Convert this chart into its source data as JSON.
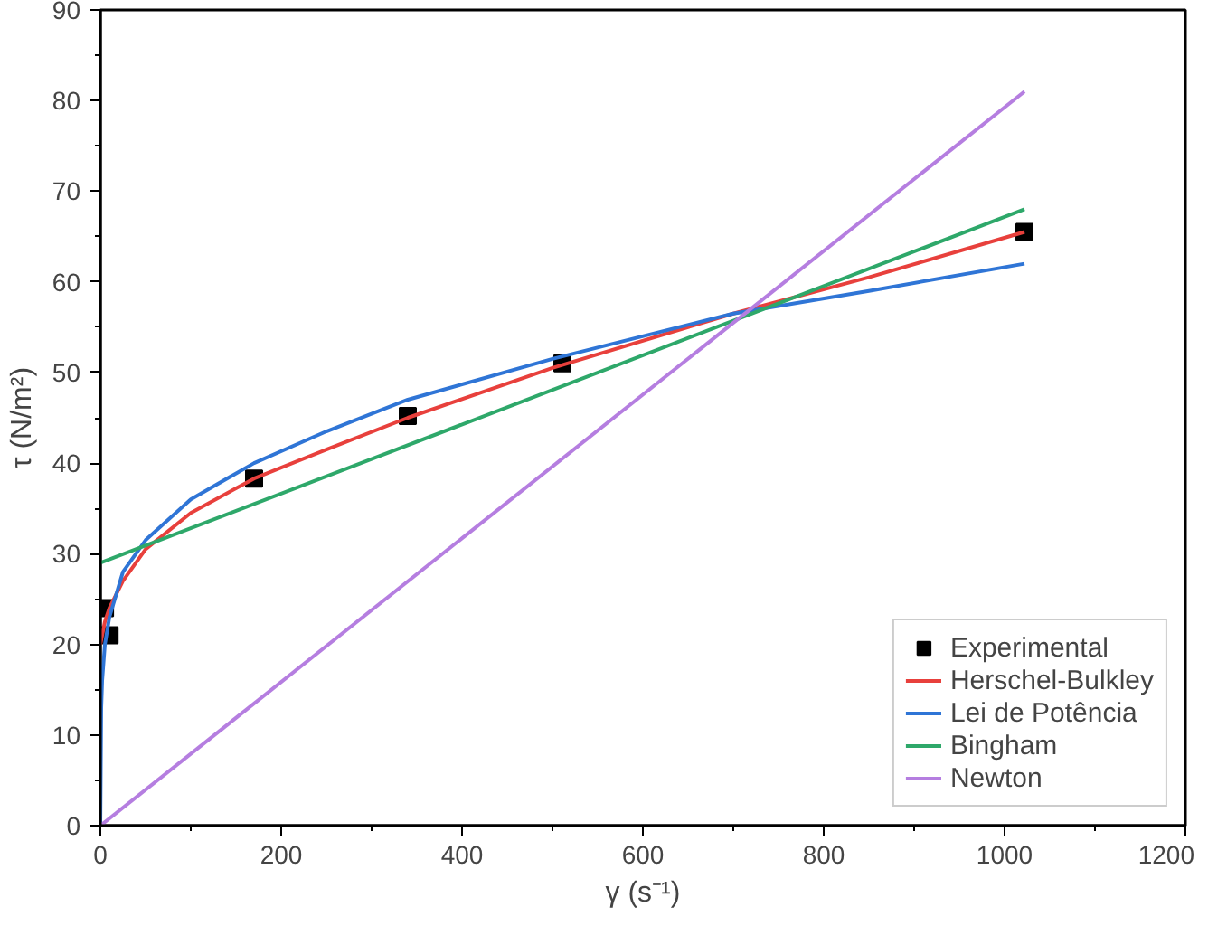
{
  "chart_data": {
    "type": "line",
    "xlabel": "γ (s⁻¹)",
    "ylabel": "τ (N/m²)",
    "xlim": [
      0,
      1200
    ],
    "ylim": [
      0,
      90
    ],
    "xticks": [
      0,
      200,
      400,
      600,
      800,
      1000,
      1200
    ],
    "yticks": [
      0,
      10,
      20,
      30,
      40,
      50,
      60,
      70,
      80,
      90
    ],
    "grid": false,
    "legend": "bottom right",
    "series": [
      {
        "name": "Experimental",
        "type": "scatter",
        "marker": "square",
        "color": "#000000",
        "x": [
          5.1,
          10.2,
          170,
          340,
          511,
          1022
        ],
        "values": [
          24,
          21,
          38.3,
          45.2,
          51,
          65.5
        ]
      },
      {
        "name": "Herschel-Bulkley",
        "color": "#e8403c",
        "x": [
          0,
          5,
          10,
          25,
          50,
          100,
          170,
          250,
          340,
          500,
          700,
          850,
          1022
        ],
        "values": [
          20,
          22.5,
          24,
          27,
          30.5,
          34.5,
          38.3,
          41.5,
          45,
          50.5,
          56.5,
          60.5,
          65.5
        ]
      },
      {
        "name": "Lei de Potência",
        "color": "#2f75d6",
        "x": [
          0,
          1,
          2,
          5,
          10,
          25,
          50,
          100,
          170,
          250,
          340,
          500,
          700,
          850,
          1022
        ],
        "values": [
          0,
          13,
          16,
          20,
          23,
          28,
          31.5,
          36,
          40,
          43.5,
          47,
          51.5,
          56.5,
          59,
          62
        ]
      },
      {
        "name": "Bingham",
        "color": "#2ea86a",
        "x": [
          0,
          1022
        ],
        "values": [
          29,
          68
        ]
      },
      {
        "name": "Newton",
        "color": "#b57ee0",
        "x": [
          0,
          1022
        ],
        "values": [
          0,
          81
        ]
      }
    ]
  }
}
